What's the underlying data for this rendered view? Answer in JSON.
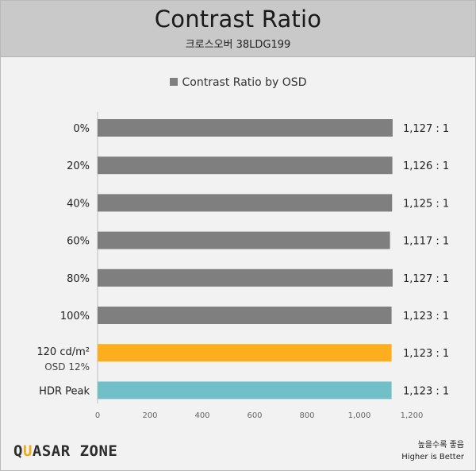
{
  "header": {
    "title": "Contrast Ratio",
    "subtitle": "크로스오버 38LDG199"
  },
  "footer": {
    "logo_part1": "Q",
    "logo_accent": "U",
    "logo_part2": "ASAR ZONE",
    "note_line1": "높을수록 좋음",
    "note_line2": "Higher is Better"
  },
  "colors": {
    "gray_bar": "#7f7f7f",
    "orange_bar": "#fcae1c",
    "teal_bar": "#72c0c7",
    "logo_accent": "#f2a81a"
  },
  "chart_data": {
    "type": "bar",
    "orientation": "horizontal",
    "title": "Contrast Ratio",
    "subtitle": "크로스오버 38LDG199",
    "categories": [
      "0%",
      "20%",
      "40%",
      "60%",
      "80%",
      "100%",
      "120 cd/m²",
      "HDR Peak"
    ],
    "category_sublabels": [
      "",
      "",
      "",
      "",
      "",
      "",
      "OSD 12%",
      ""
    ],
    "series": [
      {
        "name": "Contrast Ratio by OSD",
        "values": [
          1127,
          1126,
          1125,
          1117,
          1127,
          1123,
          1123,
          1123
        ],
        "value_labels": [
          "1,127 : 1",
          "1,126 : 1",
          "1,125 : 1",
          "1,117 : 1",
          "1,127 : 1",
          "1,123 : 1",
          "1,123 : 1",
          "1,123 : 1"
        ],
        "bar_colors": [
          "#7f7f7f",
          "#7f7f7f",
          "#7f7f7f",
          "#7f7f7f",
          "#7f7f7f",
          "#7f7f7f",
          "#fcae1c",
          "#72c0c7"
        ]
      }
    ],
    "xlim": [
      0,
      1200
    ],
    "ticks": [
      0,
      200,
      400,
      600,
      800,
      1000,
      1200
    ],
    "tick_labels": [
      "0",
      "200",
      "400",
      "600",
      "800",
      "1,000",
      "1,200"
    ],
    "legend": "top-center",
    "grid": false
  }
}
